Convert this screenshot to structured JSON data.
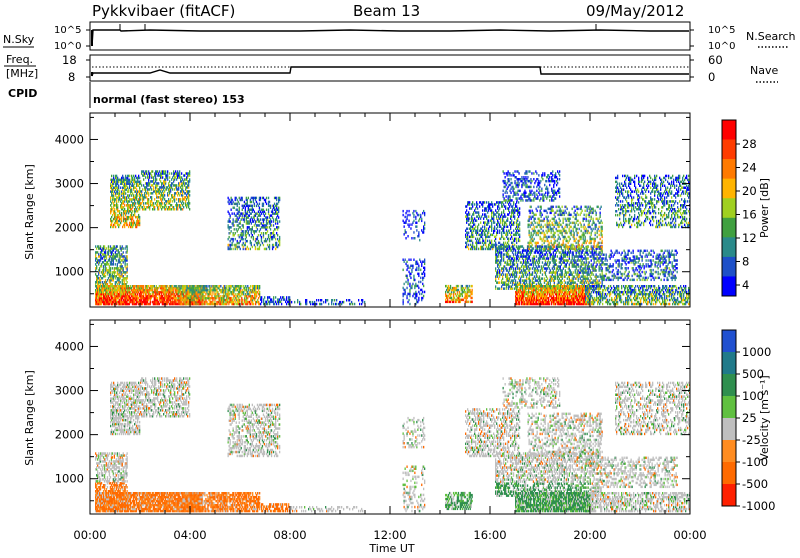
{
  "header": {
    "title": "Pykkvibaer (fitACF)",
    "beam": "Beam 13",
    "date": "09/May/2012"
  },
  "nsky_panel": {
    "left_label": "N.Sky",
    "right_label": "N.Search",
    "left_ticks": [
      "10^5",
      "10^0"
    ],
    "right_ticks": [
      "10^5",
      "10^0"
    ]
  },
  "freq_panel": {
    "left_label_line1": "Freq.",
    "left_label_line2": "[MHz]",
    "left_ticks": [
      "18",
      "8"
    ],
    "right_label": "Nave",
    "right_ticks": [
      "60",
      "0"
    ]
  },
  "cpid_panel": {
    "label": "CPID",
    "text": "normal (fast stereo) 153"
  },
  "x_axis": {
    "label": "Time UT",
    "ticks": [
      "00:00",
      "04:00",
      "08:00",
      "12:00",
      "16:00",
      "20:00",
      "00:00"
    ]
  },
  "power_colorbar": {
    "label": "Power [dB]",
    "ticks": [
      "28",
      "24",
      "20",
      "16",
      "12",
      "8",
      "4"
    ],
    "colors": [
      "#ff0000",
      "#ff3c00",
      "#ff7a00",
      "#ffb400",
      "#a0d020",
      "#40a040",
      "#2a8a8a",
      "#1e50c8",
      "#0000ff"
    ]
  },
  "velocity_colorbar": {
    "label": "Velocity [m s⁻¹]",
    "ticks": [
      "1000",
      "500",
      "100",
      "25",
      "-25",
      "-100",
      "-500",
      "-1000"
    ],
    "colors": [
      "#2050d0",
      "#207a8a",
      "#2f8f4f",
      "#60c040",
      "#bfbfbf",
      "#ff8c20",
      "#ff6a00",
      "#ff2000"
    ]
  },
  "chart_data": [
    {
      "type": "heatmap",
      "name": "power",
      "ylabel": "Slant Range [km]",
      "xlabel": "Time UT",
      "y_ticks": [
        1000,
        2000,
        3000,
        4000
      ],
      "ylim": [
        200,
        4600
      ],
      "xlim_hours": [
        0,
        24
      ],
      "value_range_db": [
        0,
        30
      ]
    },
    {
      "type": "heatmap",
      "name": "velocity",
      "ylabel": "Slant Range [km]",
      "xlabel": "Time UT",
      "y_ticks": [
        1000,
        2000,
        3000,
        4000
      ],
      "ylim": [
        200,
        4600
      ],
      "xlim_hours": [
        0,
        24
      ],
      "value_range_ms": [
        -1000,
        1000
      ]
    }
  ]
}
